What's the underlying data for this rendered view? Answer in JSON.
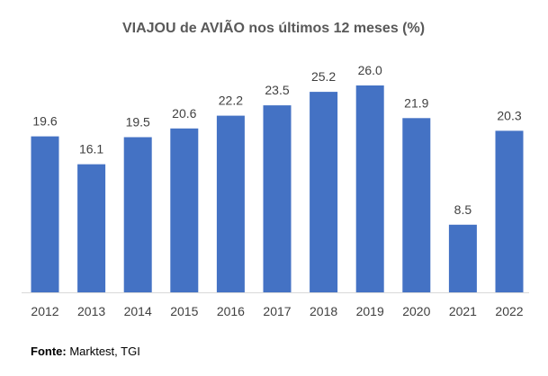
{
  "chart_data": {
    "type": "bar",
    "title": "VIAJOU de AVIÃO nos últimos 12 meses (%)",
    "xlabel": "",
    "ylabel": "",
    "categories": [
      "2012",
      "2013",
      "2014",
      "2015",
      "2016",
      "2017",
      "2018",
      "2019",
      "2020",
      "2021",
      "2022"
    ],
    "values": [
      19.6,
      16.1,
      19.5,
      20.6,
      22.2,
      23.5,
      25.2,
      26.0,
      21.9,
      8.5,
      20.3
    ],
    "value_labels": [
      "19.6",
      "16.1",
      "19.5",
      "20.6",
      "22.2",
      "23.5",
      "25.2",
      "26.0",
      "21.9",
      "8.5",
      "20.3"
    ],
    "ylim": [
      0,
      26
    ],
    "grid": false,
    "legend": "none",
    "bar_color": "#4472C4"
  },
  "source": {
    "label": "Fonte:",
    "text": " Marktest, TGI"
  }
}
